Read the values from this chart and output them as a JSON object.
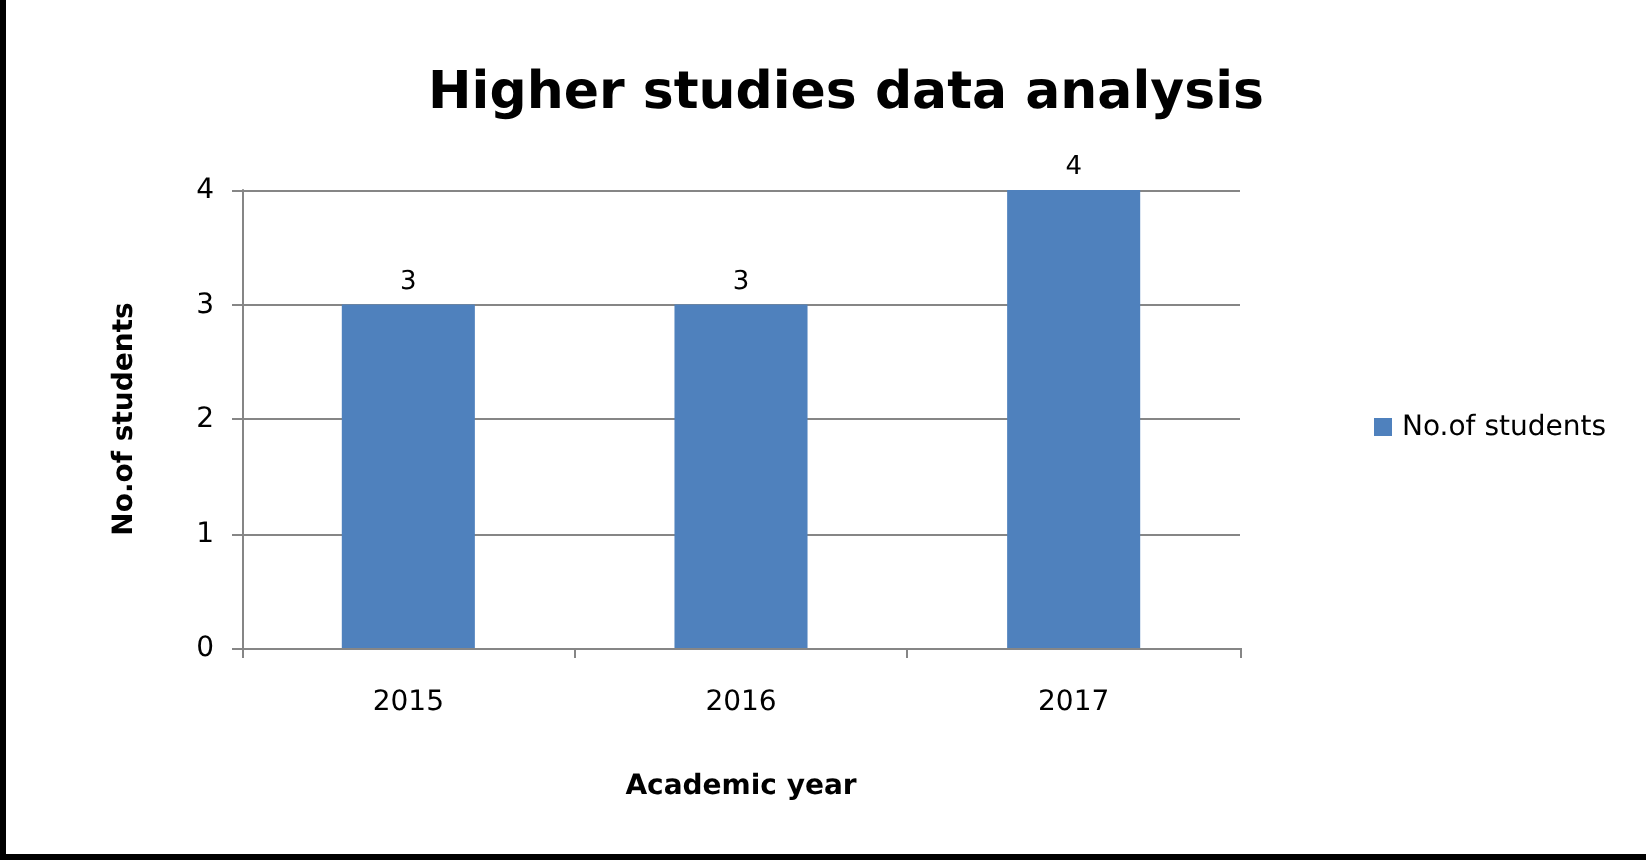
{
  "chart_data": {
    "type": "bar",
    "title": "Higher studies data analysis",
    "xlabel": "Academic year",
    "ylabel": "No.of students",
    "categories": [
      "2015",
      "2016",
      "2017"
    ],
    "series": [
      {
        "name": "No.of students",
        "color": "#4f81bd",
        "values": [
          3,
          3,
          4
        ]
      }
    ],
    "ylim": [
      0,
      4
    ],
    "yticks": [
      0,
      1,
      2,
      3,
      4
    ],
    "grid": "y",
    "legend": "right",
    "data_labels": true
  }
}
